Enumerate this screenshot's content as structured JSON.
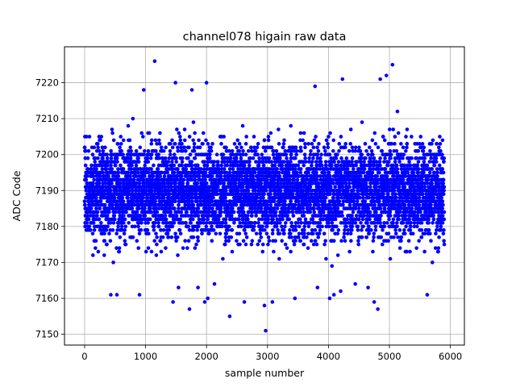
{
  "chart_data": {
    "type": "scatter",
    "title": "channel078 higain raw data",
    "xlabel": "sample number",
    "ylabel": "ADC Code",
    "xlim": [
      -330,
      6230
    ],
    "ylim": [
      7147,
      7230
    ],
    "xticks": [
      0,
      1000,
      2000,
      3000,
      4000,
      5000,
      6000
    ],
    "yticks": [
      7150,
      7160,
      7170,
      7180,
      7190,
      7200,
      7210,
      7220
    ],
    "grid": true,
    "marker_color": "#0000ff",
    "series": [
      {
        "n_points": 5900,
        "x_range": [
          0,
          5900
        ],
        "typical_center": 7190,
        "typical_spread": 9,
        "outliers": [
          [
            1150,
            7226
          ],
          [
            5050,
            7225
          ],
          [
            4950,
            7222
          ],
          [
            4850,
            7221
          ],
          [
            4230,
            7221
          ],
          [
            1490,
            7220
          ],
          [
            2000,
            7220
          ],
          [
            3780,
            7219
          ],
          [
            970,
            7218
          ],
          [
            1760,
            7218
          ],
          [
            2380,
            7155
          ],
          [
            2970,
            7151
          ],
          [
            2950,
            7158
          ],
          [
            3080,
            7159
          ],
          [
            1450,
            7159
          ],
          [
            1970,
            7159
          ],
          [
            2020,
            7160
          ],
          [
            4020,
            7160
          ],
          [
            3450,
            7160
          ],
          [
            4810,
            7157
          ],
          [
            1720,
            7157
          ],
          [
            4750,
            7159
          ],
          [
            5620,
            7161
          ],
          [
            900,
            7161
          ],
          [
            4200,
            7162
          ],
          [
            3820,
            7163
          ],
          [
            2620,
            7159
          ],
          [
            4440,
            7164
          ],
          [
            1540,
            7163
          ],
          [
            430,
            7161
          ],
          [
            530,
            7161
          ],
          [
            2130,
            7164
          ],
          [
            1860,
            7163
          ],
          [
            4090,
            7161
          ],
          [
            4650,
            7163
          ]
        ]
      }
    ]
  }
}
